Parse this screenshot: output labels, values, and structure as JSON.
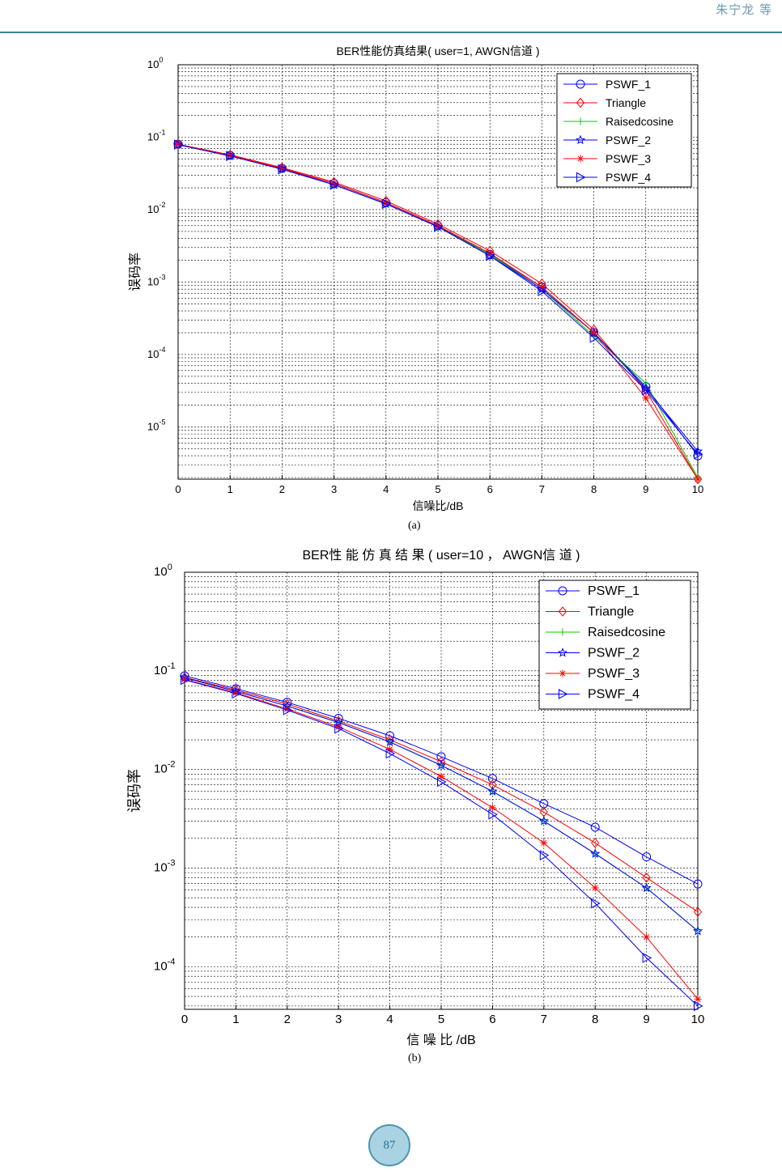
{
  "header": {
    "authors": "朱宁龙 等"
  },
  "footer": {
    "page_number": "87"
  },
  "captions": [
    "(a)",
    "(b)"
  ],
  "chart_data": [
    {
      "type": "line",
      "title": "BER性能仿真结果( user=1,  AWGN信道 )",
      "xlabel": "信噪比/dB",
      "ylabel": "误码率",
      "yscale": "log",
      "xlim": [
        0,
        10
      ],
      "ylim": [
        1.9e-06,
        1
      ],
      "xticks": [
        "0",
        "1",
        "2",
        "3",
        "4",
        "5",
        "6",
        "7",
        "8",
        "9",
        "10"
      ],
      "yticks_exp": [
        "0",
        "-1",
        "-2",
        "-3",
        "-4",
        "-5"
      ],
      "grid": true,
      "legend_position": "top-right",
      "x": [
        0,
        1,
        2,
        3,
        4,
        5,
        6,
        7,
        8,
        9,
        10
      ],
      "series": [
        {
          "name": "PSWF_1",
          "color": "#0000ff",
          "marker": "circle",
          "values": [
            0.08,
            0.056,
            0.037,
            0.023,
            0.0125,
            0.006,
            0.0024,
            0.00085,
            0.0002,
            3.6e-05,
            4e-06
          ]
        },
        {
          "name": "Triangle",
          "color": "#ff0000",
          "marker": "diamond",
          "values": [
            0.08,
            0.057,
            0.038,
            0.024,
            0.0132,
            0.0063,
            0.0027,
            0.00095,
            0.00022,
            3.2e-05,
            1.9e-06
          ]
        },
        {
          "name": "Raisedcosine",
          "color": "#00cc00",
          "marker": "plus",
          "values": [
            0.079,
            0.055,
            0.036,
            0.022,
            0.012,
            0.0058,
            0.0024,
            0.0008,
            0.00018,
            4e-05,
            2e-06
          ]
        },
        {
          "name": "PSWF_2",
          "color": "#0000ff",
          "marker": "pentagram",
          "values": [
            0.079,
            0.055,
            0.037,
            0.022,
            0.012,
            0.0058,
            0.0023,
            0.0008,
            0.0002,
            3.4e-05,
            4.6e-06
          ]
        },
        {
          "name": "PSWF_3",
          "color": "#ff0000",
          "marker": "asterisk",
          "values": [
            0.08,
            0.056,
            0.037,
            0.023,
            0.0125,
            0.006,
            0.0025,
            0.00085,
            0.0002,
            2.5e-05,
            1.9e-06
          ]
        },
        {
          "name": "PSWF_4",
          "color": "#0000ff",
          "marker": "triangle-right",
          "values": [
            0.079,
            0.055,
            0.036,
            0.022,
            0.012,
            0.0058,
            0.0023,
            0.00075,
            0.00017,
            3.2e-05,
            4.2e-06
          ]
        }
      ]
    },
    {
      "type": "line",
      "title": "BER性 能 仿 真 结 果 ( user=10 ，  AWGN信 道 )",
      "xlabel": "信 噪 比 /dB",
      "ylabel": "误码率",
      "yscale": "log",
      "xlim": [
        0,
        10
      ],
      "ylim": [
        3.7e-05,
        1
      ],
      "xticks": [
        "0",
        "1",
        "2",
        "3",
        "4",
        "5",
        "6",
        "7",
        "8",
        "9",
        "10"
      ],
      "yticks_exp": [
        "0",
        "-1",
        "-2",
        "-3",
        "-4"
      ],
      "grid": true,
      "legend_position": "top-right",
      "x": [
        0,
        1,
        2,
        3,
        4,
        5,
        6,
        7,
        8,
        9,
        10
      ],
      "series": [
        {
          "name": "PSWF_1",
          "color": "#0000ff",
          "marker": "circle",
          "values": [
            0.089,
            0.066,
            0.048,
            0.033,
            0.022,
            0.0135,
            0.0081,
            0.0045,
            0.0026,
            0.0013,
            0.00069
          ]
        },
        {
          "name": "Triangle",
          "color": "#ff0000",
          "marker": "diamond",
          "values": [
            0.086,
            0.064,
            0.046,
            0.031,
            0.02,
            0.012,
            0.007,
            0.0037,
            0.0018,
            0.0008,
            0.00036
          ]
        },
        {
          "name": "Raisedcosine",
          "color": "#00cc00",
          "marker": "plus",
          "values": [
            0.085,
            0.062,
            0.044,
            0.03,
            0.019,
            0.011,
            0.006,
            0.003,
            0.0014,
            0.00063,
            0.00023
          ]
        },
        {
          "name": "PSWF_2",
          "color": "#0000ff",
          "marker": "pentagram",
          "values": [
            0.085,
            0.062,
            0.044,
            0.03,
            0.019,
            0.011,
            0.006,
            0.003,
            0.0014,
            0.00063,
            0.00023
          ]
        },
        {
          "name": "PSWF_3",
          "color": "#ff0000",
          "marker": "asterisk",
          "values": [
            0.082,
            0.06,
            0.041,
            0.027,
            0.016,
            0.0085,
            0.0041,
            0.0018,
            0.00063,
            0.0002,
            4.7e-05
          ]
        },
        {
          "name": "PSWF_4",
          "color": "#0000ff",
          "marker": "triangle-right",
          "values": [
            0.081,
            0.059,
            0.04,
            0.026,
            0.0145,
            0.0075,
            0.0035,
            0.00135,
            0.00044,
            0.000123,
            4e-05
          ]
        }
      ]
    }
  ]
}
